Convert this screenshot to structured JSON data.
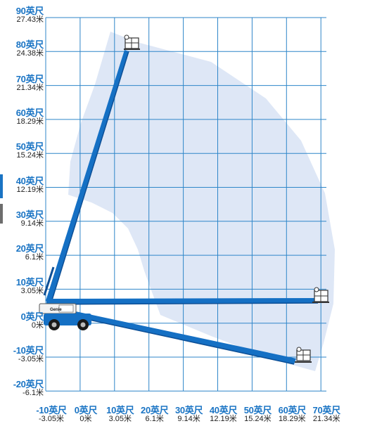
{
  "diagram": {
    "y_ticks": [
      {
        "ft": "90英尺",
        "m": "27.43米"
      },
      {
        "ft": "80英尺",
        "m": "24.38米"
      },
      {
        "ft": "70英尺",
        "m": "21.34米"
      },
      {
        "ft": "60英尺",
        "m": "18.29米"
      },
      {
        "ft": "50英尺",
        "m": "15.24米"
      },
      {
        "ft": "40英尺",
        "m": "12.19米"
      },
      {
        "ft": "30英尺",
        "m": "9.14米"
      },
      {
        "ft": "20英尺",
        "m": "6.1米"
      },
      {
        "ft": "10英尺",
        "m": "3.05米"
      },
      {
        "ft": "0英尺",
        "m": "0米"
      },
      {
        "ft": "-10英尺",
        "m": "-3.05米"
      },
      {
        "ft": "-20英尺",
        "m": "-6.1米"
      }
    ],
    "x_ticks": [
      {
        "ft": "-10英尺",
        "m": "-3.05米"
      },
      {
        "ft": "0英尺",
        "m": "0米"
      },
      {
        "ft": "10英尺",
        "m": "3.05米"
      },
      {
        "ft": "20英尺",
        "m": "6.1米"
      },
      {
        "ft": "30英尺",
        "m": "9.14米"
      },
      {
        "ft": "40英尺",
        "m": "12.19米"
      },
      {
        "ft": "50英尺",
        "m": "15.24米"
      },
      {
        "ft": "60英尺",
        "m": "18.29米"
      },
      {
        "ft": "70英尺",
        "m": "21.34米"
      }
    ],
    "brand_label": "Genie",
    "colors": {
      "grid": "#2e86c9",
      "envelope": "#dbe5f5",
      "boom": "#1570c4",
      "boom_dark": "#0d4f96",
      "tick_text": "#1a74c4",
      "side_tab_blue": "#1a74c4",
      "side_tab_gray": "#6d6d6d"
    }
  }
}
